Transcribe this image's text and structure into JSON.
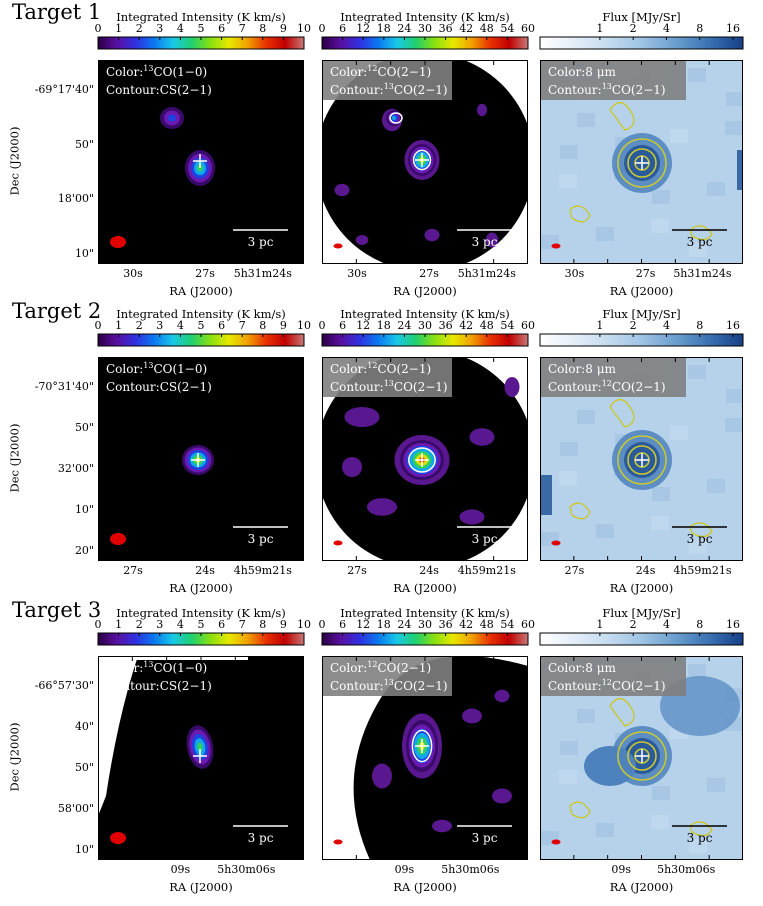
{
  "figure": {
    "rows": [
      {
        "title": "Target 1",
        "dec_ticks": [
          "-69°17'40\"",
          "50\"",
          "18'00\"",
          "10\""
        ],
        "ra_ticks": [
          "30s",
          "27s",
          "5h31m24s"
        ],
        "panels": [
          {
            "kind": "13co",
            "color_label": "Color:",
            "color_line": "CO(1−0)",
            "color_iso": "13",
            "contour_label": "Contour:CS(2−1)",
            "contour_iso": "",
            "contour_line": ""
          },
          {
            "kind": "12co",
            "color_label": "Color:",
            "color_line": "CO(2−1)",
            "color_iso": "12",
            "contour_label": "Contour:",
            "contour_iso": "13",
            "contour_line": "CO(2−1)"
          },
          {
            "kind": "8um",
            "color_label": "Color:8 μm",
            "color_line": "",
            "color_iso": "",
            "contour_label": "Contour:",
            "contour_iso": "13",
            "contour_line": "CO(2−1)"
          }
        ]
      },
      {
        "title": "Target 2",
        "dec_ticks": [
          "-70°31'40\"",
          "50\"",
          "32'00\"",
          "10\"",
          "20\""
        ],
        "ra_ticks": [
          "27s",
          "24s",
          "4h59m21s"
        ],
        "panels": [
          {
            "kind": "13co",
            "color_label": "Color:",
            "color_line": "CO(1−0)",
            "color_iso": "13",
            "contour_label": "Contour:CS(2−1)",
            "contour_iso": "",
            "contour_line": ""
          },
          {
            "kind": "12co",
            "color_label": "Color:",
            "color_line": "CO(2−1)",
            "color_iso": "12",
            "contour_label": "Contour:",
            "contour_iso": "13",
            "contour_line": "CO(2−1)"
          },
          {
            "kind": "8um",
            "color_label": "Color:8 μm",
            "color_line": "",
            "color_iso": "",
            "contour_label": "Contour:",
            "contour_iso": "12",
            "contour_line": "CO(2−1)"
          }
        ]
      },
      {
        "title": "Target 3",
        "dec_ticks": [
          "-66°57'30\"",
          "40\"",
          "50\"",
          "58'00\"",
          "10\""
        ],
        "ra_ticks": [
          "09s",
          "5h30m06s"
        ],
        "panels": [
          {
            "kind": "13co",
            "color_label": "Color:",
            "color_line": "CO(1−0)",
            "color_iso": "13",
            "contour_label": "Contour:CS(2−1)",
            "contour_iso": "",
            "contour_line": ""
          },
          {
            "kind": "12co",
            "color_label": "Color:",
            "color_line": "CO(2−1)",
            "color_iso": "12",
            "contour_label": "Contour:",
            "contour_iso": "13",
            "contour_line": "CO(2−1)"
          },
          {
            "kind": "8um",
            "color_label": "Color:8 μm",
            "color_line": "",
            "color_iso": "",
            "contour_label": "Contour:",
            "contour_iso": "12",
            "contour_line": "CO(2−1)"
          }
        ]
      }
    ],
    "colorbars": {
      "13co": {
        "label": "Integrated Intensity (K km/s)",
        "ticks": [
          "0",
          "1",
          "2",
          "3",
          "4",
          "5",
          "6",
          "7",
          "8",
          "9",
          "10"
        ]
      },
      "12co": {
        "label": "Integrated Intensity (K km/s)",
        "ticks": [
          "0",
          "6",
          "12",
          "18",
          "24",
          "30",
          "36",
          "42",
          "48",
          "54",
          "60"
        ]
      },
      "8um": {
        "label": "Flux [MJy/Sr]",
        "ticks": [
          "1",
          "2",
          "4",
          "8",
          "16"
        ]
      }
    },
    "axis_labels": {
      "ra": "RA (J2000)",
      "dec": "Dec (J2000)"
    },
    "scale_bar": "3 pc",
    "colors": {
      "jet_dark": "#20003a",
      "contour_yellow": "#c8c832",
      "beam_red": "#e00000",
      "annot_bg": "#808080",
      "blue_map": "#a9c9e4"
    }
  }
}
